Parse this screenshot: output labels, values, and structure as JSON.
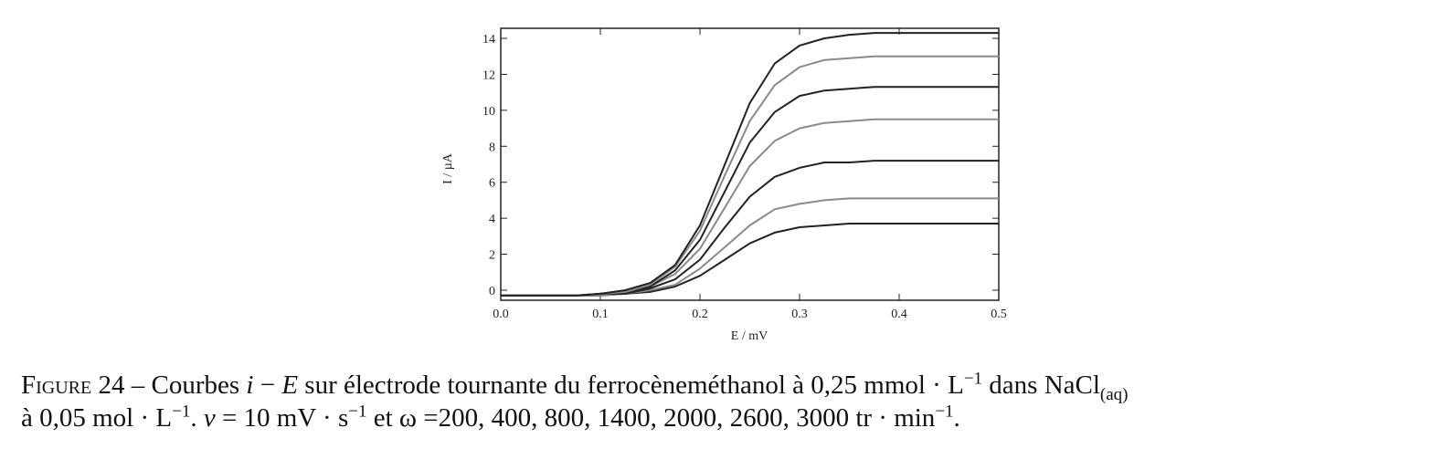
{
  "chart_data": {
    "type": "line",
    "xlabel": "E / mV",
    "ylabel": "I / µA",
    "x": [
      0,
      0.025,
      0.05,
      0.075,
      0.1,
      0.125,
      0.15,
      0.175,
      0.2,
      0.225,
      0.25,
      0.275,
      0.3,
      0.325,
      0.35,
      0.375,
      0.4,
      0.425,
      0.45,
      0.475,
      0.5
    ],
    "series": [
      {
        "color": "#222222",
        "values": [
          -0.3,
          -0.3,
          -0.3,
          -0.3,
          -0.3,
          -0.2,
          -0.1,
          0.2,
          0.8,
          1.7,
          2.6,
          3.2,
          3.5,
          3.6,
          3.7,
          3.7,
          3.7,
          3.7,
          3.7,
          3.7,
          3.7
        ]
      },
      {
        "color": "#8a8a8a",
        "values": [
          -0.3,
          -0.3,
          -0.3,
          -0.3,
          -0.3,
          -0.2,
          0.0,
          0.3,
          1.2,
          2.4,
          3.6,
          4.5,
          4.8,
          5.0,
          5.1,
          5.1,
          5.1,
          5.1,
          5.1,
          5.1,
          5.1
        ]
      },
      {
        "color": "#222222",
        "values": [
          -0.3,
          -0.3,
          -0.3,
          -0.3,
          -0.2,
          -0.2,
          0.1,
          0.6,
          1.7,
          3.5,
          5.2,
          6.3,
          6.8,
          7.1,
          7.1,
          7.2,
          7.2,
          7.2,
          7.2,
          7.2,
          7.2
        ]
      },
      {
        "color": "#8a8a8a",
        "values": [
          -0.3,
          -0.3,
          -0.3,
          -0.3,
          -0.2,
          -0.1,
          0.2,
          0.9,
          2.3,
          4.6,
          6.9,
          8.3,
          9.0,
          9.3,
          9.4,
          9.5,
          9.5,
          9.5,
          9.5,
          9.5,
          9.5
        ]
      },
      {
        "color": "#222222",
        "values": [
          -0.3,
          -0.3,
          -0.3,
          -0.3,
          -0.2,
          -0.1,
          0.2,
          1.1,
          2.8,
          5.5,
          8.2,
          9.9,
          10.8,
          11.1,
          11.2,
          11.3,
          11.3,
          11.3,
          11.3,
          11.3,
          11.3
        ]
      },
      {
        "color": "#8a8a8a",
        "values": [
          -0.3,
          -0.3,
          -0.3,
          -0.3,
          -0.2,
          -0.1,
          0.3,
          1.3,
          3.3,
          6.4,
          9.4,
          11.4,
          12.4,
          12.8,
          12.9,
          13.0,
          13.0,
          13.0,
          13.0,
          13.0,
          13.0
        ]
      },
      {
        "color": "#222222",
        "values": [
          -0.3,
          -0.3,
          -0.3,
          -0.3,
          -0.2,
          0.0,
          0.4,
          1.4,
          3.6,
          7.0,
          10.4,
          12.6,
          13.6,
          14.0,
          14.2,
          14.3,
          14.3,
          14.3,
          14.3,
          14.3,
          14.3
        ]
      }
    ],
    "xlim": [
      0,
      0.5
    ],
    "xticks": [
      {
        "value": 0,
        "label": "0.0"
      },
      0.1,
      0.2,
      0.3,
      0.4,
      0.5
    ],
    "ylim": [
      -0.56,
      14.56
    ],
    "yticks": [
      0,
      2,
      4,
      6,
      8,
      10,
      12,
      14
    ],
    "grid": false
  },
  "caption": [
    "Figure 24",
    " – Courbes ",
    "i",
    " − ",
    "E",
    " sur électrode tournante du ferrocèneméthanol à 0,25 mmol · L",
    "−1",
    " dans NaCl",
    "(aq)",
    "à 0,05 mol · L",
    "−1",
    ". ",
    "v",
    " = 10 mV · s",
    "−1",
    " et ω =200, 400, 800, 1400, 2000, 2600, 3000 tr · min",
    "−1",
    "."
  ]
}
